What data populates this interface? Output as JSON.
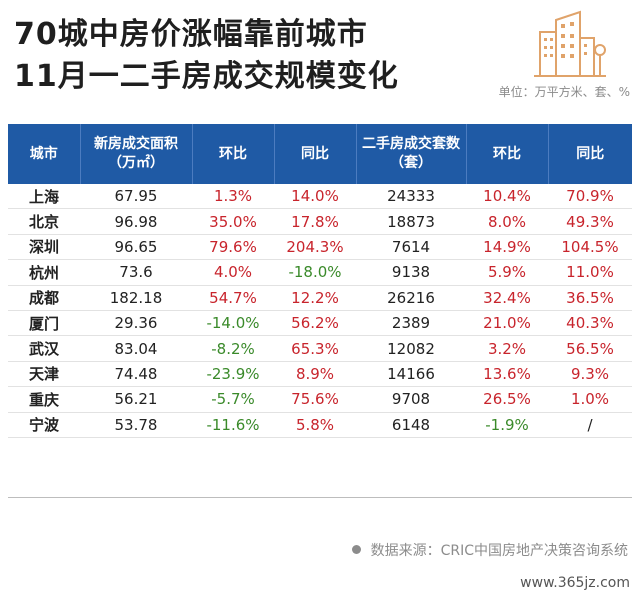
{
  "chart_data": {
    "type": "table",
    "title_line1": "70城中房价涨幅靠前城市",
    "title_line2": "11月一二手房成交规模变化",
    "unit_note": "单位：万平方米、套、%",
    "columns": [
      "城市",
      "新房成交面积（万㎡）",
      "环比",
      "同比",
      "二手房成交套数（套）",
      "环比",
      "同比"
    ],
    "rows": [
      {
        "city": "上海",
        "new_area": "67.95",
        "new_mom": "1.3%",
        "new_yoy": "14.0%",
        "resale_units": "24333",
        "resale_mom": "10.4%",
        "resale_yoy": "70.9%"
      },
      {
        "city": "北京",
        "new_area": "96.98",
        "new_mom": "35.0%",
        "new_yoy": "17.8%",
        "resale_units": "18873",
        "resale_mom": "8.0%",
        "resale_yoy": "49.3%"
      },
      {
        "city": "深圳",
        "new_area": "96.65",
        "new_mom": "79.6%",
        "new_yoy": "204.3%",
        "resale_units": "7614",
        "resale_mom": "14.9%",
        "resale_yoy": "104.5%"
      },
      {
        "city": "杭州",
        "new_area": "73.6",
        "new_mom": "4.0%",
        "new_yoy": "-18.0%",
        "resale_units": "9138",
        "resale_mom": "5.9%",
        "resale_yoy": "11.0%"
      },
      {
        "city": "成都",
        "new_area": "182.18",
        "new_mom": "54.7%",
        "new_yoy": "12.2%",
        "resale_units": "26216",
        "resale_mom": "32.4%",
        "resale_yoy": "36.5%"
      },
      {
        "city": "厦门",
        "new_area": "29.36",
        "new_mom": "-14.0%",
        "new_yoy": "56.2%",
        "resale_units": "2389",
        "resale_mom": "21.0%",
        "resale_yoy": "40.3%"
      },
      {
        "city": "武汉",
        "new_area": "83.04",
        "new_mom": "-8.2%",
        "new_yoy": "65.3%",
        "resale_units": "12082",
        "resale_mom": "3.2%",
        "resale_yoy": "56.5%"
      },
      {
        "city": "天津",
        "new_area": "74.48",
        "new_mom": "-23.9%",
        "new_yoy": "8.9%",
        "resale_units": "14166",
        "resale_mom": "13.6%",
        "resale_yoy": "9.3%"
      },
      {
        "city": "重庆",
        "new_area": "56.21",
        "new_mom": "-5.7%",
        "new_yoy": "75.6%",
        "resale_units": "9708",
        "resale_mom": "26.5%",
        "resale_yoy": "1.0%"
      },
      {
        "city": "宁波",
        "new_area": "53.78",
        "new_mom": "-11.6%",
        "new_yoy": "5.8%",
        "resale_units": "6148",
        "resale_mom": "-1.9%",
        "resale_yoy": "/"
      }
    ]
  },
  "source": "数据来源：CRIC中国房地产决策咨询系统",
  "watermark": "www.365jz.com",
  "colors": {
    "header_bg": "#1f5aa5",
    "positive": "#c8242c",
    "negative": "#3a8a2a",
    "logo": "#e0a36a"
  },
  "icons": {
    "logo": "building-icon"
  }
}
